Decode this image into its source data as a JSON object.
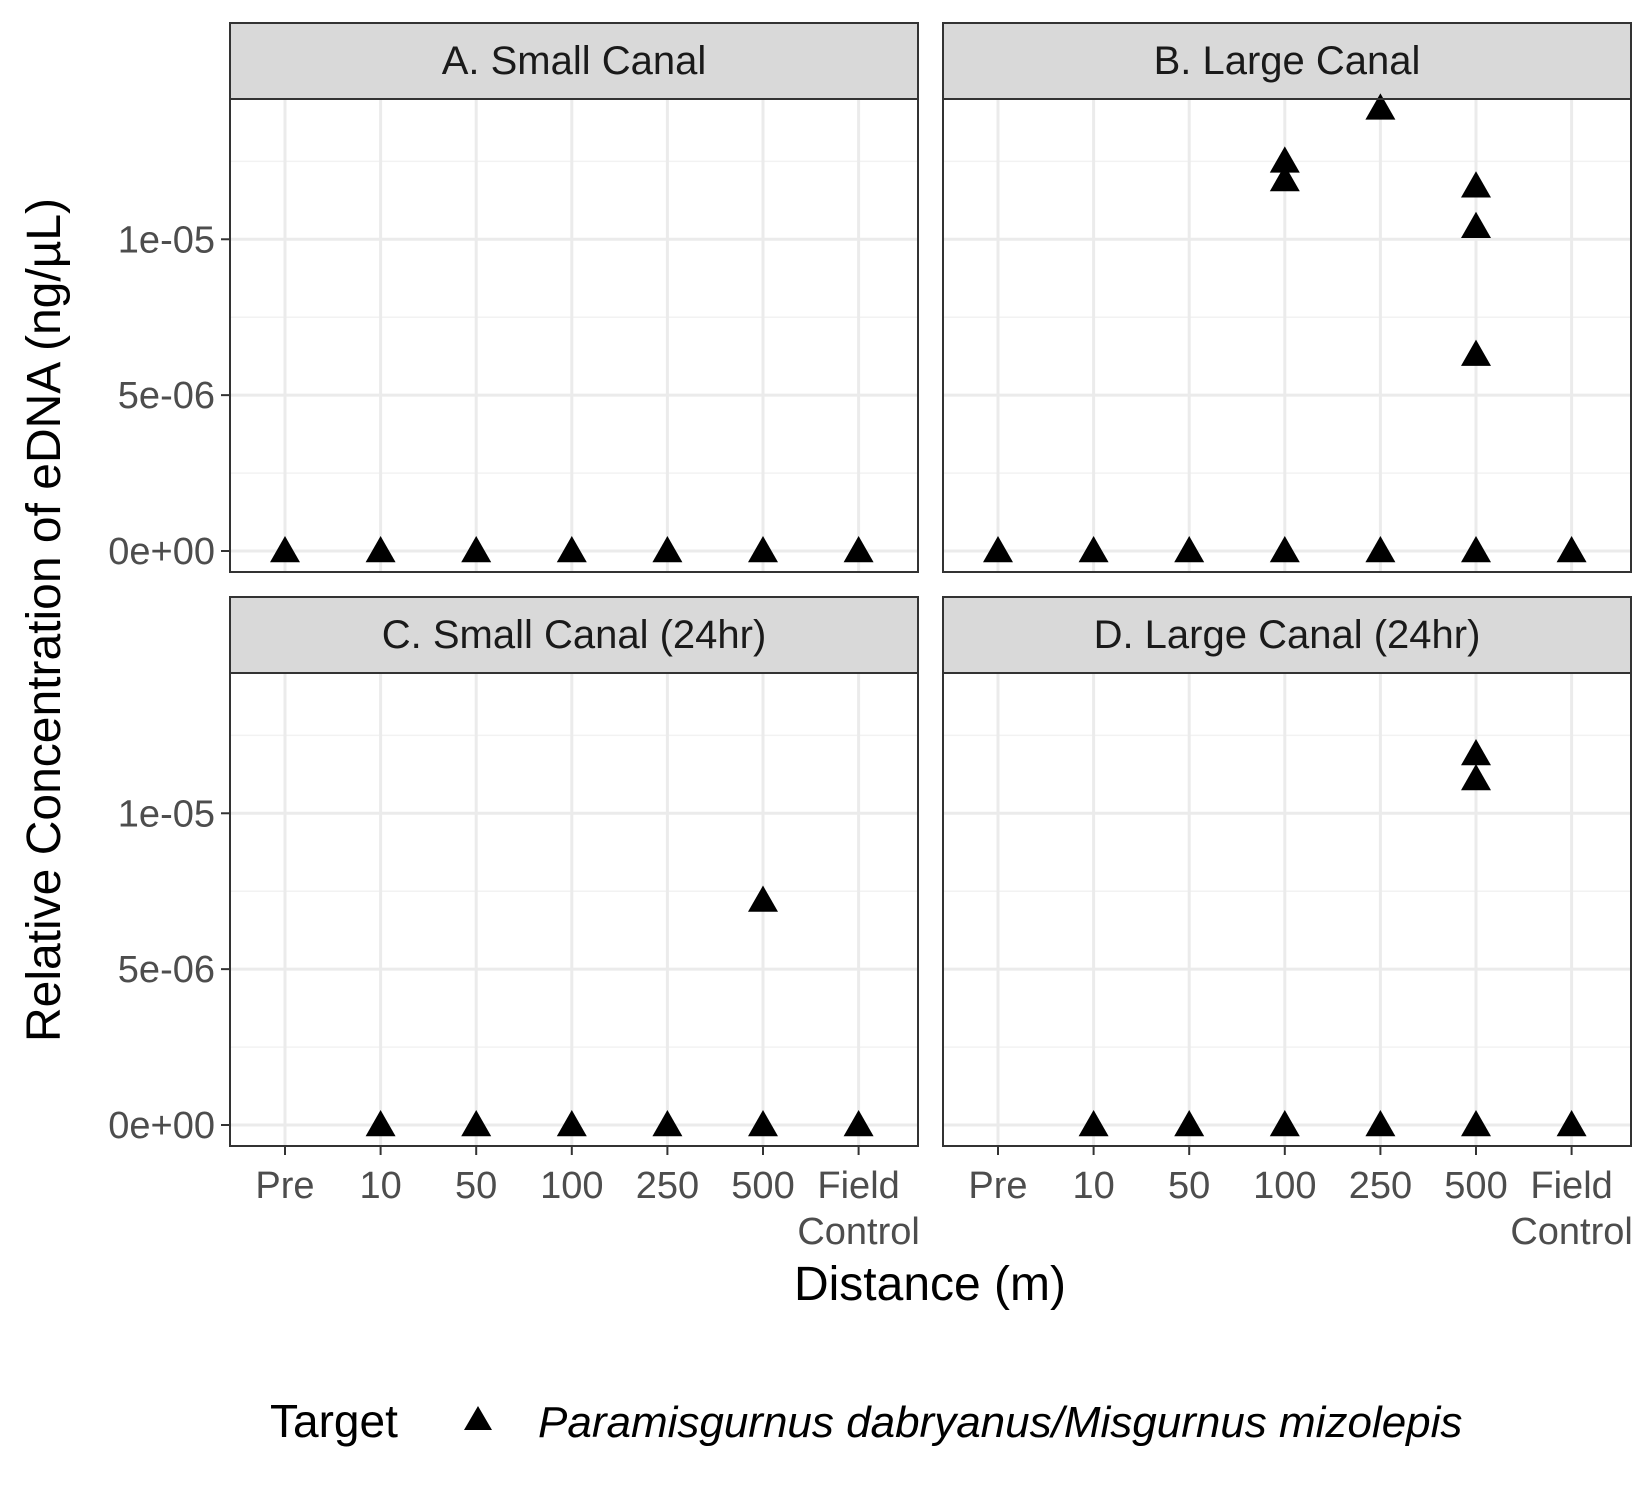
{
  "chart_data": {
    "type": "scatter",
    "xlabel": "Distance (m)",
    "ylabel": "Relative Concentration of eDNA (ng/µL)",
    "ylim": [
      0,
      1.45e-05
    ],
    "y_major_ticks": [
      0,
      5e-06,
      1e-05
    ],
    "y_minor_ticks": [
      2.5e-06,
      7.5e-06,
      1.25e-05
    ],
    "y_tick_labels": [
      "0e+00",
      "5e-06",
      "1e-05"
    ],
    "x_categories": [
      "Pre",
      "10",
      "50",
      "100",
      "250",
      "500",
      "Field\nControl"
    ],
    "legend": {
      "title": "Target",
      "entries": [
        "Paramisgurnus dabryanus/Misgurnus mizolepis"
      ],
      "marker": "triangle",
      "position": "bottom"
    },
    "panels": [
      {
        "title": "A. Small Canal",
        "points": [
          {
            "x": "Pre",
            "y": 0
          },
          {
            "x": "10",
            "y": 0
          },
          {
            "x": "50",
            "y": 0
          },
          {
            "x": "100",
            "y": 0
          },
          {
            "x": "250",
            "y": 0
          },
          {
            "x": "500",
            "y": 0
          },
          {
            "x": "Field\nControl",
            "y": 0
          }
        ]
      },
      {
        "title": "B. Large Canal",
        "points": [
          {
            "x": "Pre",
            "y": 0
          },
          {
            "x": "10",
            "y": 0
          },
          {
            "x": "50",
            "y": 0
          },
          {
            "x": "100",
            "y": 0
          },
          {
            "x": "100",
            "y": 1.25e-05
          },
          {
            "x": "100",
            "y": 1.19e-05
          },
          {
            "x": "250",
            "y": 0
          },
          {
            "x": "250",
            "y": 1.42e-05
          },
          {
            "x": "500",
            "y": 0
          },
          {
            "x": "500",
            "y": 1.17e-05
          },
          {
            "x": "500",
            "y": 1.04e-05
          },
          {
            "x": "500",
            "y": 6.3e-06
          },
          {
            "x": "Field\nControl",
            "y": 0
          }
        ]
      },
      {
        "title": "C. Small Canal (24hr)",
        "points": [
          {
            "x": "10",
            "y": 0
          },
          {
            "x": "50",
            "y": 0
          },
          {
            "x": "100",
            "y": 0
          },
          {
            "x": "250",
            "y": 0
          },
          {
            "x": "500",
            "y": 0
          },
          {
            "x": "500",
            "y": 7.2e-06
          },
          {
            "x": "Field\nControl",
            "y": 0
          }
        ]
      },
      {
        "title": "D. Large Canal (24hr)",
        "points": [
          {
            "x": "10",
            "y": 0
          },
          {
            "x": "50",
            "y": 0
          },
          {
            "x": "100",
            "y": 0
          },
          {
            "x": "250",
            "y": 0
          },
          {
            "x": "500",
            "y": 0
          },
          {
            "x": "500",
            "y": 1.19e-05
          },
          {
            "x": "500",
            "y": 1.11e-05
          },
          {
            "x": "Field\nControl",
            "y": 0
          }
        ]
      }
    ]
  }
}
